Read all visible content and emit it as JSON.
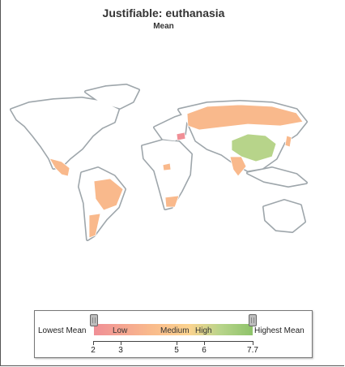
{
  "title": "Justifiable: euthanasia",
  "subtitle": "Mean",
  "legend": {
    "low_label": "Lowest Mean",
    "high_label": "Highest Mean",
    "bands": [
      "Low",
      "Medium",
      "High"
    ],
    "ticks": [
      "2",
      "3",
      "5",
      "6",
      "7.7"
    ]
  },
  "colors": {
    "no_data": "#ffffff",
    "lowest": "#f08f96",
    "low": "#f9b98c",
    "medium": "#fbd38f",
    "high": "#b7d48a",
    "highest": "#8ec36a",
    "outline_shadow": "#8e979d"
  }
}
